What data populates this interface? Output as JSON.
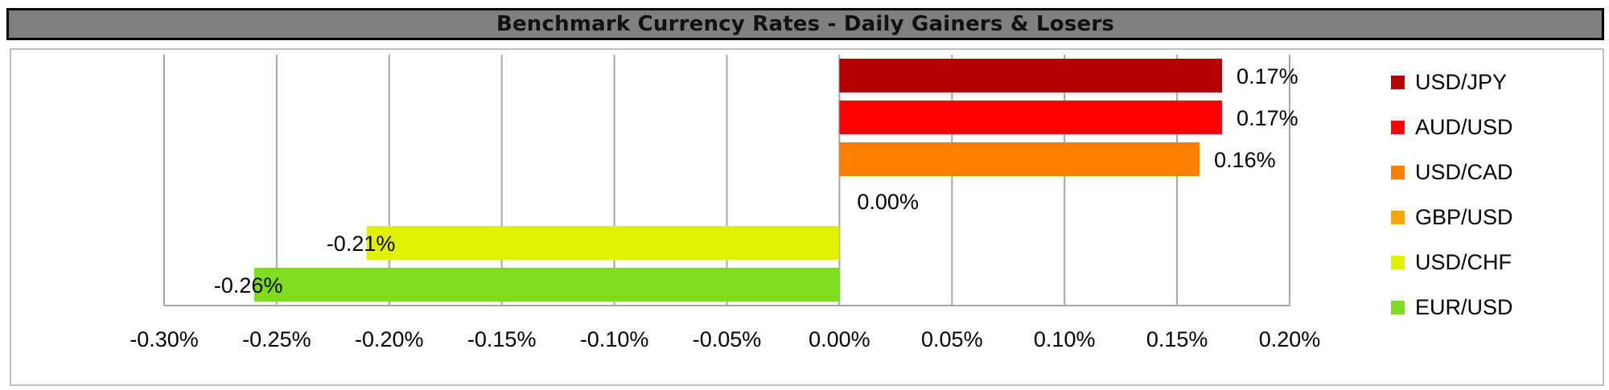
{
  "chart_data": {
    "type": "bar",
    "orientation": "horizontal",
    "title": "Benchmark Currency Rates - Daily Gainers & Losers",
    "categories": [
      "USD/JPY",
      "AUD/USD",
      "USD/CAD",
      "GBP/USD",
      "USD/CHF",
      "EUR/USD"
    ],
    "values": [
      0.17,
      0.17,
      0.16,
      0.0,
      -0.21,
      -0.26
    ],
    "value_labels": [
      "0.17%",
      "0.17%",
      "0.16%",
      "0.00%",
      "-0.21%",
      "-0.26%"
    ],
    "colors": [
      "#b20000",
      "#ff0000",
      "#ff8000",
      "#ffa500",
      "#e0f000",
      "#7fdb1e"
    ],
    "xlim": [
      -0.3,
      0.2
    ],
    "xticks": [
      -0.3,
      -0.25,
      -0.2,
      -0.15,
      -0.1,
      -0.05,
      0.0,
      0.05,
      0.1,
      0.15,
      0.2
    ],
    "xtick_labels": [
      "-0.30%",
      "-0.25%",
      "-0.20%",
      "-0.15%",
      "-0.10%",
      "-0.05%",
      "0.00%",
      "0.05%",
      "0.10%",
      "0.15%",
      "0.20%"
    ],
    "grid": "vertical",
    "legend": "right"
  }
}
